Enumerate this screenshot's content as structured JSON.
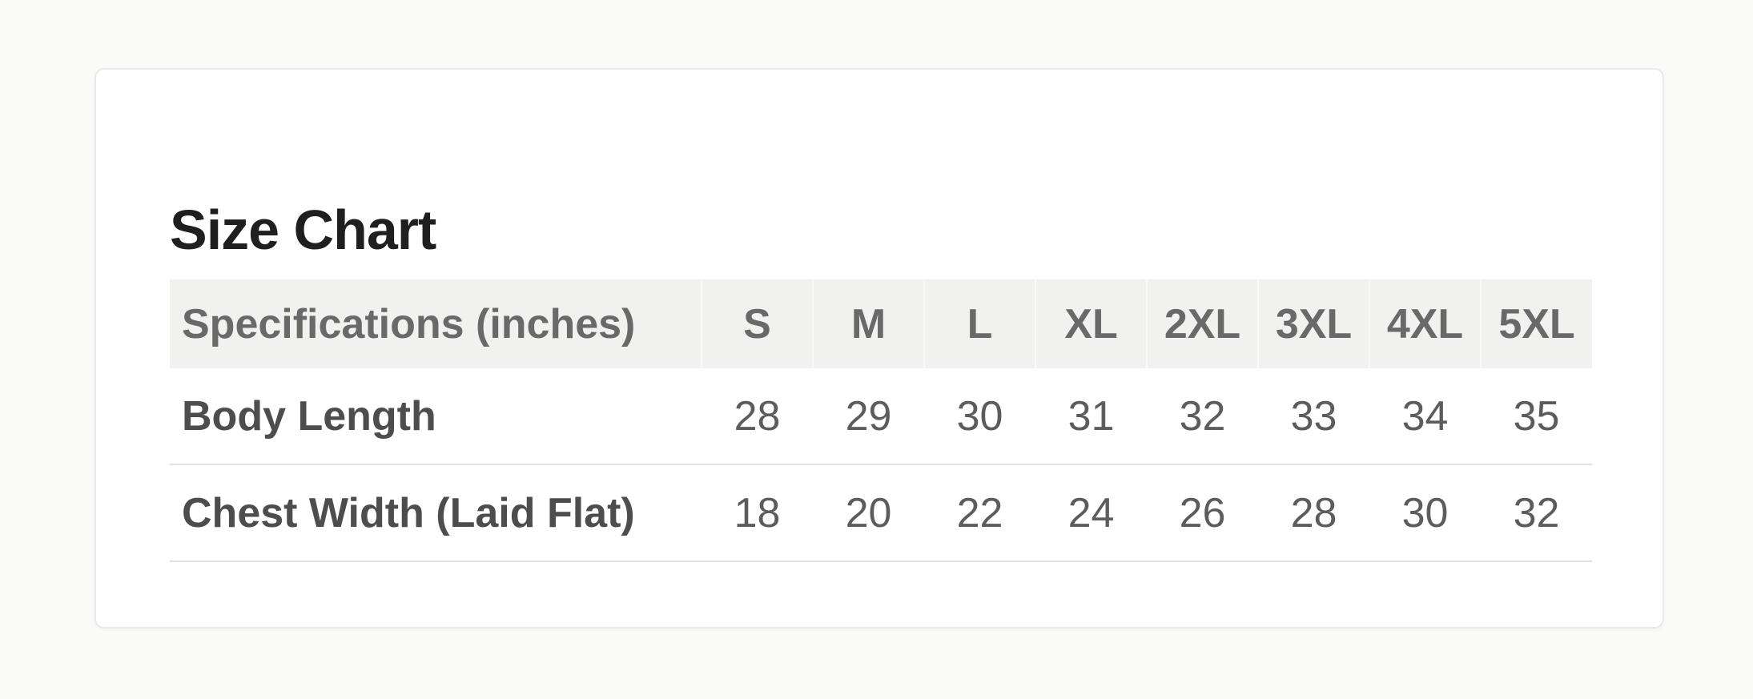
{
  "title": "Size Chart",
  "table": {
    "header": {
      "spec_label": "Specifications (inches)",
      "sizes": [
        "S",
        "M",
        "L",
        "XL",
        "2XL",
        "3XL",
        "4XL",
        "5XL"
      ]
    },
    "rows": [
      {
        "label": "Body Length",
        "values": [
          "28",
          "29",
          "30",
          "31",
          "32",
          "33",
          "34",
          "35"
        ]
      },
      {
        "label": "Chest Width (Laid Flat)",
        "values": [
          "18",
          "20",
          "22",
          "24",
          "26",
          "28",
          "30",
          "32"
        ]
      }
    ]
  },
  "colors": {
    "page_background": "#fafaf9",
    "card_background": "#ffffff",
    "card_border": "#eae9e6",
    "title_text": "#1f1f1f",
    "header_background": "#f1f1f0",
    "header_text": "#696969",
    "row_label_text": "#4d4d4d",
    "cell_text": "#5c5c5c",
    "divider": "#e1e1df"
  },
  "chart_data": {
    "type": "table",
    "title": "Size Chart",
    "columns": [
      "Specifications (inches)",
      "S",
      "M",
      "L",
      "XL",
      "2XL",
      "3XL",
      "4XL",
      "5XL"
    ],
    "rows": [
      [
        "Body Length",
        28,
        29,
        30,
        31,
        32,
        33,
        34,
        35
      ],
      [
        "Chest Width (Laid Flat)",
        18,
        20,
        22,
        24,
        26,
        28,
        30,
        32
      ]
    ]
  }
}
